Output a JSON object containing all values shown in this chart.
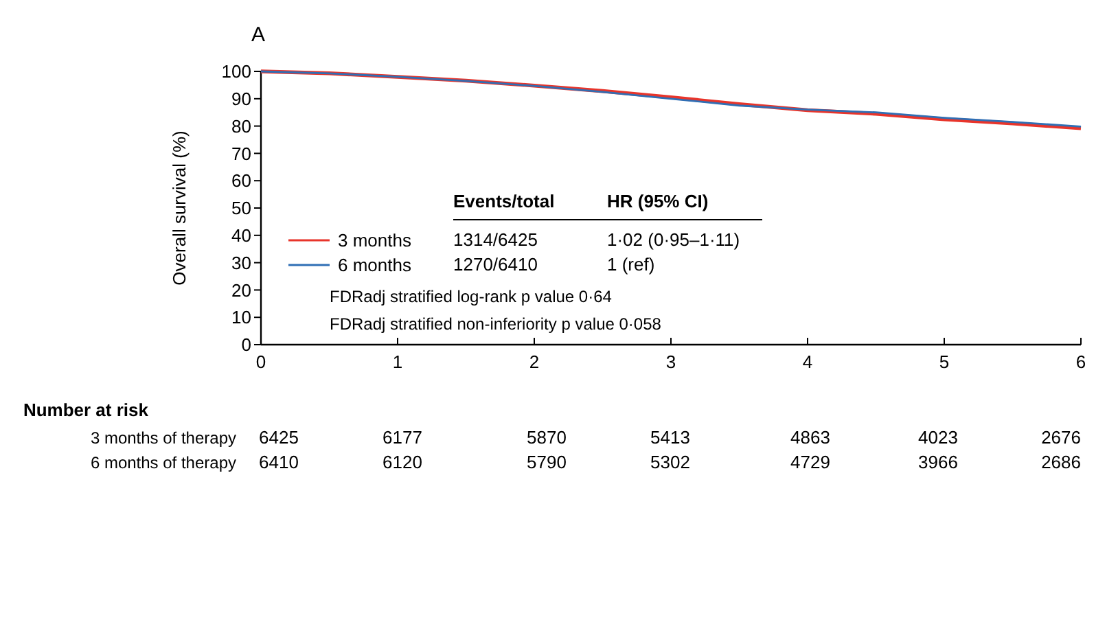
{
  "chart_data": {
    "type": "line",
    "title": "A",
    "ylabel": "Overall survival (%)",
    "x": [
      0,
      0.5,
      1,
      1.5,
      2,
      2.5,
      3,
      3.5,
      4,
      4.5,
      5,
      5.5,
      6
    ],
    "series": [
      {
        "name": "3 months",
        "color": "#e8352b",
        "values": [
          100,
          99.3,
          98,
          96.6,
          94.8,
          92.8,
          90.5,
          88,
          85.8,
          84.5,
          82.5,
          81,
          79.2
        ]
      },
      {
        "name": "6 months",
        "color": "#2f6fb5",
        "values": [
          100,
          99.3,
          98,
          96.5,
          94.7,
          92.5,
          90,
          87.5,
          86,
          85,
          83,
          81.5,
          79.8
        ]
      }
    ],
    "xlim": [
      0,
      6
    ],
    "xticks": [
      0,
      1,
      2,
      3,
      4,
      5,
      6
    ],
    "ylim": [
      0,
      100
    ],
    "yticks": [
      0,
      10,
      20,
      30,
      40,
      50,
      60,
      70,
      80,
      90,
      100
    ],
    "grid": false,
    "legend": "bottom left",
    "marker": "none",
    "line_style": "solid",
    "annotations": [
      "Events/total",
      "HR (95% CI)",
      "1314/6425",
      "1·02 (0·95–1·11)",
      "1270/6410",
      "1 (ref)",
      "FDRadj stratified log-rank p value 0·64",
      "FDRadj stratified non-inferiority p value 0·058",
      "Number at risk",
      "3 months of therapy",
      "6425",
      "6177",
      "5870",
      "5413",
      "4863",
      "4023",
      "2676",
      "6 months of therapy",
      "6410",
      "6120",
      "5790",
      "5302",
      "4729",
      "3966",
      "2686"
    ]
  }
}
